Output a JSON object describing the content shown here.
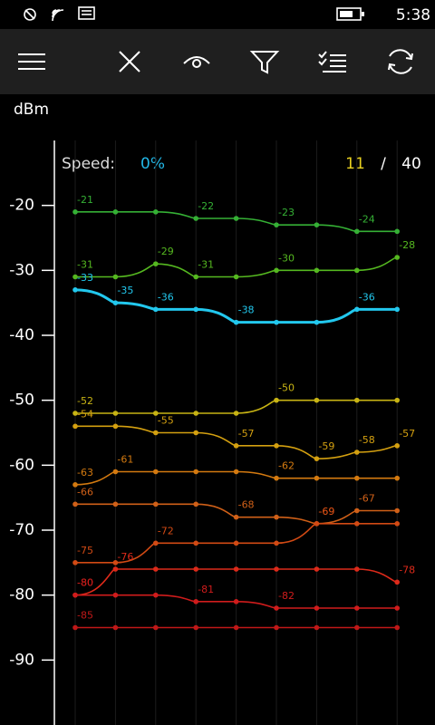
{
  "status_bar": {
    "time": "5:38"
  },
  "chart_data": {
    "type": "line",
    "y_label": "dBm",
    "speed_label": "Speed:",
    "speed_value": "0%",
    "count_current": "11",
    "count_separator": "/",
    "count_total": "40",
    "ylim": [
      -100,
      -10
    ],
    "yticks": [
      -20,
      -30,
      -40,
      -50,
      -60,
      -70,
      -80,
      -90
    ],
    "series": [
      {
        "color": "#35b035",
        "values": [
          -21,
          -21,
          -21,
          -22,
          -22,
          -23,
          -23,
          -24,
          -24
        ]
      },
      {
        "color": "#55b820",
        "values": [
          -31,
          -31,
          -29,
          -31,
          -31,
          -30,
          -30,
          -30,
          -28
        ]
      },
      {
        "color": "#22c8ee",
        "values": [
          -33,
          -35,
          -36,
          -36,
          -38,
          -38,
          -38,
          -36,
          -36
        ]
      },
      {
        "color": "#c8b414",
        "values": [
          -52,
          -52,
          -52,
          -52,
          -52,
          -50,
          -50,
          -50,
          -50
        ]
      },
      {
        "color": "#d4a010",
        "values": [
          -54,
          -54,
          -55,
          -55,
          -57,
          -57,
          -59,
          -58,
          -57
        ]
      },
      {
        "color": "#d47a10",
        "values": [
          -63,
          -61,
          -61,
          -61,
          -61,
          -62,
          -62,
          -62,
          -62
        ]
      },
      {
        "color": "#d06018",
        "values": [
          -66,
          -66,
          -66,
          -66,
          -68,
          -68,
          -69,
          -67,
          -67
        ]
      },
      {
        "color": "#d24a14",
        "values": [
          -75,
          -75,
          -72,
          -72,
          -72,
          -72,
          -69,
          -69,
          -69
        ]
      },
      {
        "color": "#de2a1a",
        "values": [
          -80,
          -76,
          -76,
          -76,
          -76,
          -76,
          -76,
          -76,
          -78
        ]
      },
      {
        "color": "#d01c1c",
        "values": [
          -80,
          -80,
          -80,
          -81,
          -81,
          -82,
          -82,
          -82,
          -82
        ]
      },
      {
        "color": "#c01818",
        "values": [
          -85,
          -85,
          -85,
          -85,
          -85,
          -85,
          -85,
          -85,
          -85
        ]
      }
    ]
  }
}
